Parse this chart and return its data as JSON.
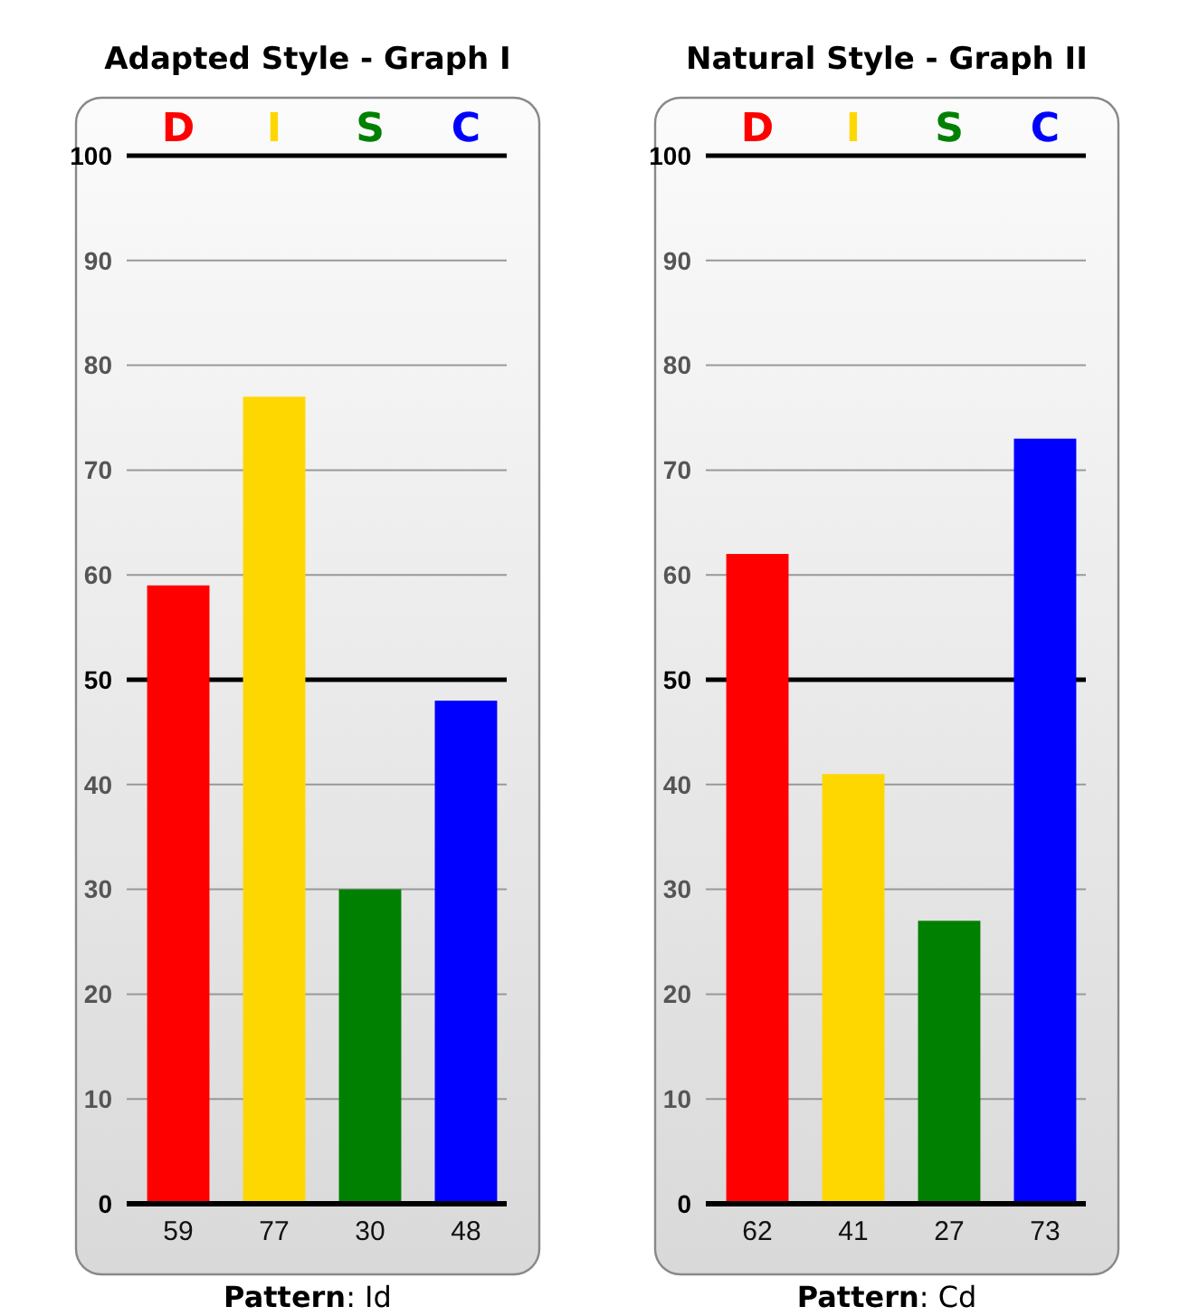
{
  "chart_data": [
    {
      "type": "bar",
      "title": "Adapted Style - Graph I",
      "categories": [
        "D",
        "I",
        "S",
        "C"
      ],
      "values": [
        59,
        77,
        30,
        48
      ],
      "colors": [
        "#ff0000",
        "#ffd700",
        "#008000",
        "#0000ff"
      ],
      "ylim": [
        0,
        100
      ],
      "yticks": [
        0,
        10,
        20,
        30,
        40,
        50,
        60,
        70,
        80,
        90,
        100
      ],
      "grid": "y",
      "data_labels": true,
      "ref_lines": [
        {
          "axis": "y",
          "value": 50,
          "color": "#000000"
        }
      ],
      "annotations": [
        "Pattern: Id"
      ]
    },
    {
      "type": "bar",
      "title": "Natural Style - Graph II",
      "categories": [
        "D",
        "I",
        "S",
        "C"
      ],
      "values": [
        62,
        41,
        27,
        73
      ],
      "colors": [
        "#ff0000",
        "#ffd700",
        "#008000",
        "#0000ff"
      ],
      "ylim": [
        0,
        100
      ],
      "yticks": [
        0,
        10,
        20,
        30,
        40,
        50,
        60,
        70,
        80,
        90,
        100
      ],
      "grid": "y",
      "data_labels": true,
      "ref_lines": [
        {
          "axis": "y",
          "value": 50,
          "color": "#000000"
        }
      ],
      "annotations": [
        "Pattern: Cd"
      ]
    }
  ]
}
